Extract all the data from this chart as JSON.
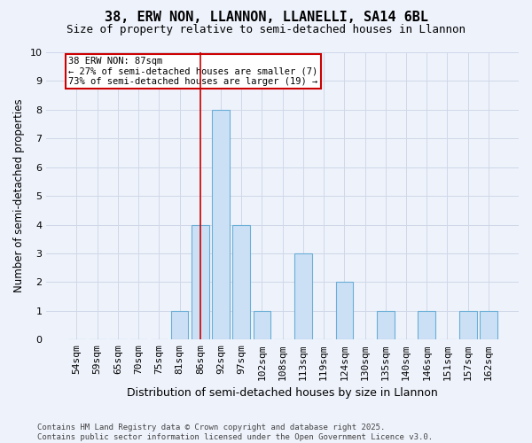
{
  "title": "38, ERW NON, LLANNON, LLANELLI, SA14 6BL",
  "subtitle": "Size of property relative to semi-detached houses in Llannon",
  "xlabel": "Distribution of semi-detached houses by size in Llannon",
  "ylabel": "Number of semi-detached properties",
  "categories": [
    "54sqm",
    "59sqm",
    "65sqm",
    "70sqm",
    "75sqm",
    "81sqm",
    "86sqm",
    "92sqm",
    "97sqm",
    "102sqm",
    "108sqm",
    "113sqm",
    "119sqm",
    "124sqm",
    "130sqm",
    "135sqm",
    "140sqm",
    "146sqm",
    "151sqm",
    "157sqm",
    "162sqm"
  ],
  "values": [
    0,
    0,
    0,
    0,
    0,
    1,
    4,
    8,
    4,
    1,
    0,
    3,
    0,
    2,
    0,
    1,
    0,
    1,
    0,
    1,
    1
  ],
  "bar_color": "#cce0f5",
  "bar_edge_color": "#6aaed6",
  "red_line_x": 6,
  "annotation_text": "38 ERW NON: 87sqm\n← 27% of semi-detached houses are smaller (7)\n73% of semi-detached houses are larger (19) →",
  "annotation_box_color": "#ffffff",
  "annotation_box_edge": "#cc0000",
  "red_line_color": "#cc0000",
  "ylim": [
    0,
    10
  ],
  "yticks": [
    0,
    1,
    2,
    3,
    4,
    5,
    6,
    7,
    8,
    9,
    10
  ],
  "grid_color": "#d0d8e8",
  "background_color": "#eef2fb",
  "footer": "Contains HM Land Registry data © Crown copyright and database right 2025.\nContains public sector information licensed under the Open Government Licence v3.0.",
  "title_fontsize": 11,
  "subtitle_fontsize": 9,
  "xlabel_fontsize": 9,
  "ylabel_fontsize": 8.5,
  "tick_fontsize": 8,
  "footer_fontsize": 6.5,
  "annot_fontsize": 7.5
}
